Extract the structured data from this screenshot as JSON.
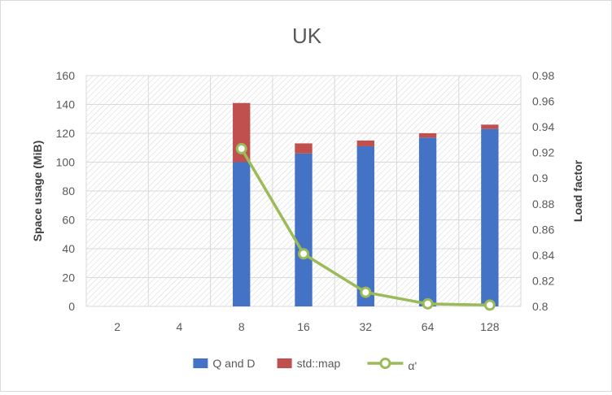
{
  "chart_data": {
    "type": "bar",
    "title": "UK",
    "ylabel": "Space usage (MiB)",
    "y2label": "Load factor",
    "categories": [
      "2",
      "4",
      "8",
      "16",
      "32",
      "64",
      "128"
    ],
    "ylim": [
      0,
      160
    ],
    "y_ticks": [
      "0",
      "20",
      "40",
      "60",
      "80",
      "100",
      "120",
      "140",
      "160"
    ],
    "y2lim": [
      0.8,
      0.98
    ],
    "y2_ticks": [
      "0.8",
      "0.82",
      "0.84",
      "0.86",
      "0.88",
      "0.9",
      "0.92",
      "0.94",
      "0.96",
      "0.98"
    ],
    "stacked": true,
    "grid": true,
    "legend_position": "bottom",
    "series": [
      {
        "name": "Q and D",
        "type": "bar",
        "axis": "left",
        "color": "#4472C4",
        "values": [
          null,
          null,
          100,
          106,
          111,
          117,
          123
        ]
      },
      {
        "name": "std::map",
        "type": "bar",
        "axis": "left",
        "color": "#C0504D",
        "values": [
          null,
          null,
          41,
          7,
          4,
          3,
          3
        ]
      },
      {
        "name": "α'",
        "type": "line",
        "axis": "right",
        "color": "#9BBB59",
        "values": [
          null,
          null,
          0.923,
          0.841,
          0.811,
          0.802,
          0.801
        ]
      }
    ]
  }
}
